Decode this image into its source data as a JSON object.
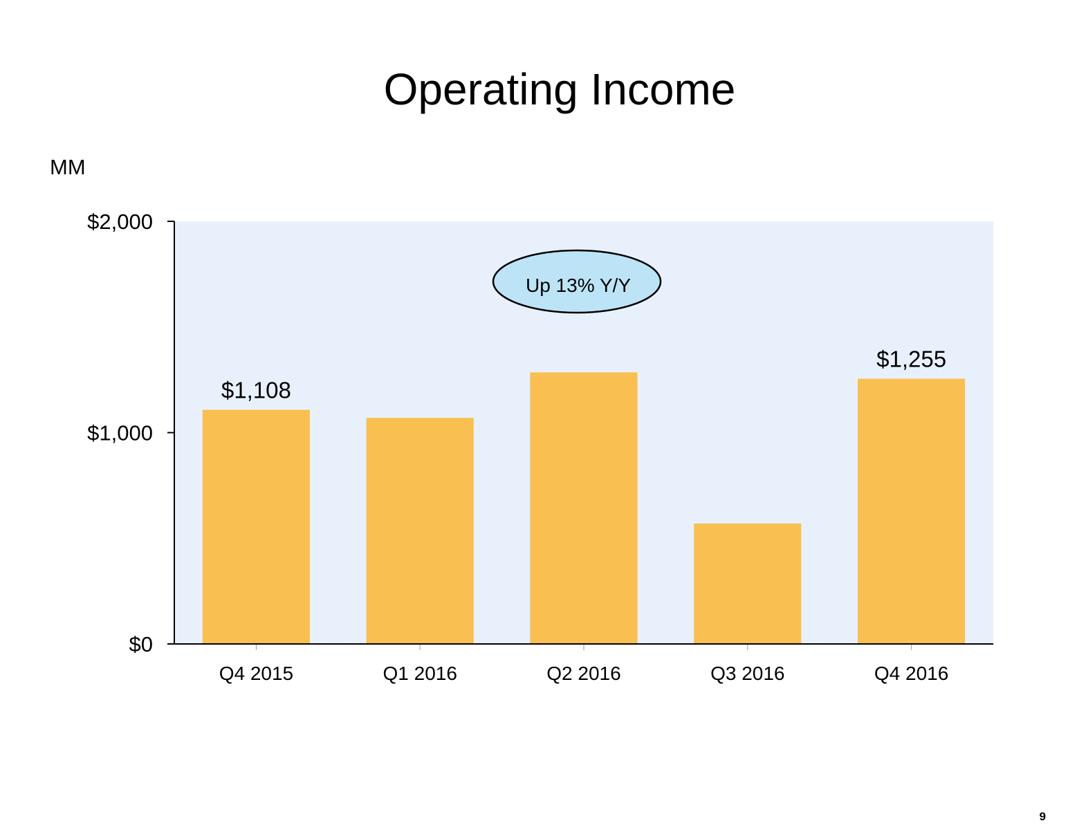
{
  "slide": {
    "title": "Operating Income",
    "unit_label": "MM",
    "page_number": "9",
    "callout": "Up 13% Y/Y"
  },
  "colors": {
    "bar": "#F9BF50",
    "plot_background": "#E8F1FB",
    "callout_fill": "#BDE4F6",
    "axis": "#000000"
  },
  "chart_data": {
    "type": "bar",
    "title": "Operating Income",
    "ylabel": "MM",
    "xlabel": "",
    "categories": [
      "Q4 2015",
      "Q1 2016",
      "Q2 2016",
      "Q3 2016",
      "Q4 2016"
    ],
    "values": [
      1108,
      1070,
      1285,
      570,
      1255
    ],
    "data_labels": [
      "$1,108",
      "",
      "",
      "",
      "$1,255"
    ],
    "ylim": [
      0,
      2000
    ],
    "yticks": [
      0,
      1000,
      2000
    ],
    "ytick_labels": [
      "$0",
      "$1,000",
      "$2,000"
    ],
    "grid": false,
    "legend": "none"
  }
}
